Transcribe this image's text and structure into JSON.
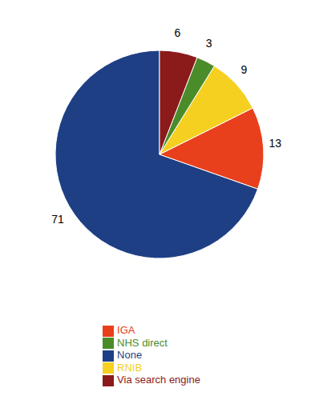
{
  "chart_data": {
    "type": "pie",
    "categories": [
      "None",
      "IGA",
      "RNIB",
      "NHS direct",
      "Via search engine"
    ],
    "values": [
      71,
      13,
      9,
      3,
      6
    ],
    "colors": [
      "#1e3f84",
      "#e8401c",
      "#f5d020",
      "#4a8c2a",
      "#8b1a1a"
    ],
    "data_labels": true,
    "legend": "bottom"
  }
}
